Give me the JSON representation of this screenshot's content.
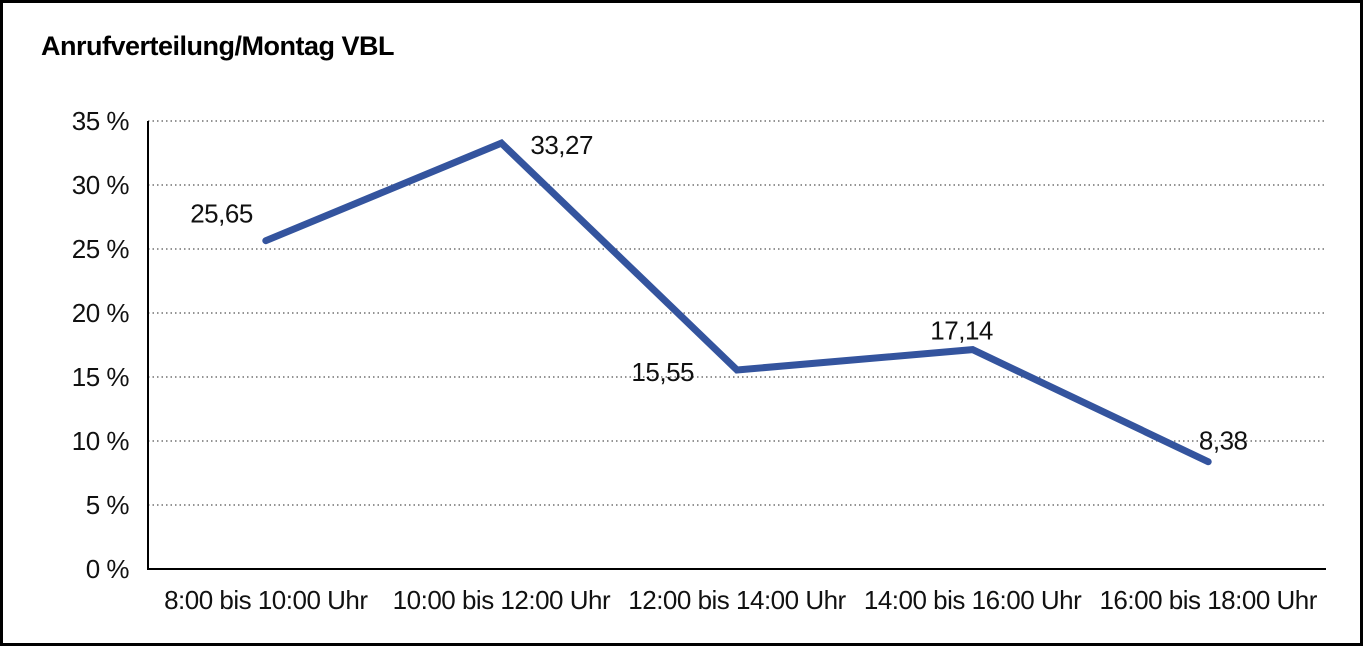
{
  "title": "Anrufverteilung/Montag VBL",
  "chart_data": {
    "type": "line",
    "title": "Anrufverteilung/Montag VBL",
    "categories": [
      "8:00 bis 10:00 Uhr",
      "10:00 bis 12:00 Uhr",
      "12:00 bis 14:00 Uhr",
      "14:00 bis 16:00 Uhr",
      "16:00 bis 18:00 Uhr"
    ],
    "series": [
      {
        "name": "Anrufverteilung Montag VBL",
        "values": [
          25.65,
          33.27,
          15.55,
          17.14,
          8.38
        ]
      }
    ],
    "point_labels": [
      "25,65",
      "33,27",
      "15,55",
      "17,14",
      "8,38"
    ],
    "xlabel": "",
    "ylabel": "",
    "ylim": [
      0,
      35
    ],
    "y_ticks": [
      0,
      5,
      10,
      15,
      20,
      25,
      30,
      35
    ],
    "y_tick_labels": [
      "0 %",
      "5 %",
      "10 %",
      "15 %",
      "20 %",
      "25 %",
      "30 %",
      "35 %"
    ],
    "grid": "horizontal-dotted",
    "legend": "none",
    "colors": {
      "line": "#34549E",
      "axis": "#000000",
      "grid": "#555555",
      "text": "#111111",
      "background": "#ffffff",
      "border": "#000000"
    }
  }
}
